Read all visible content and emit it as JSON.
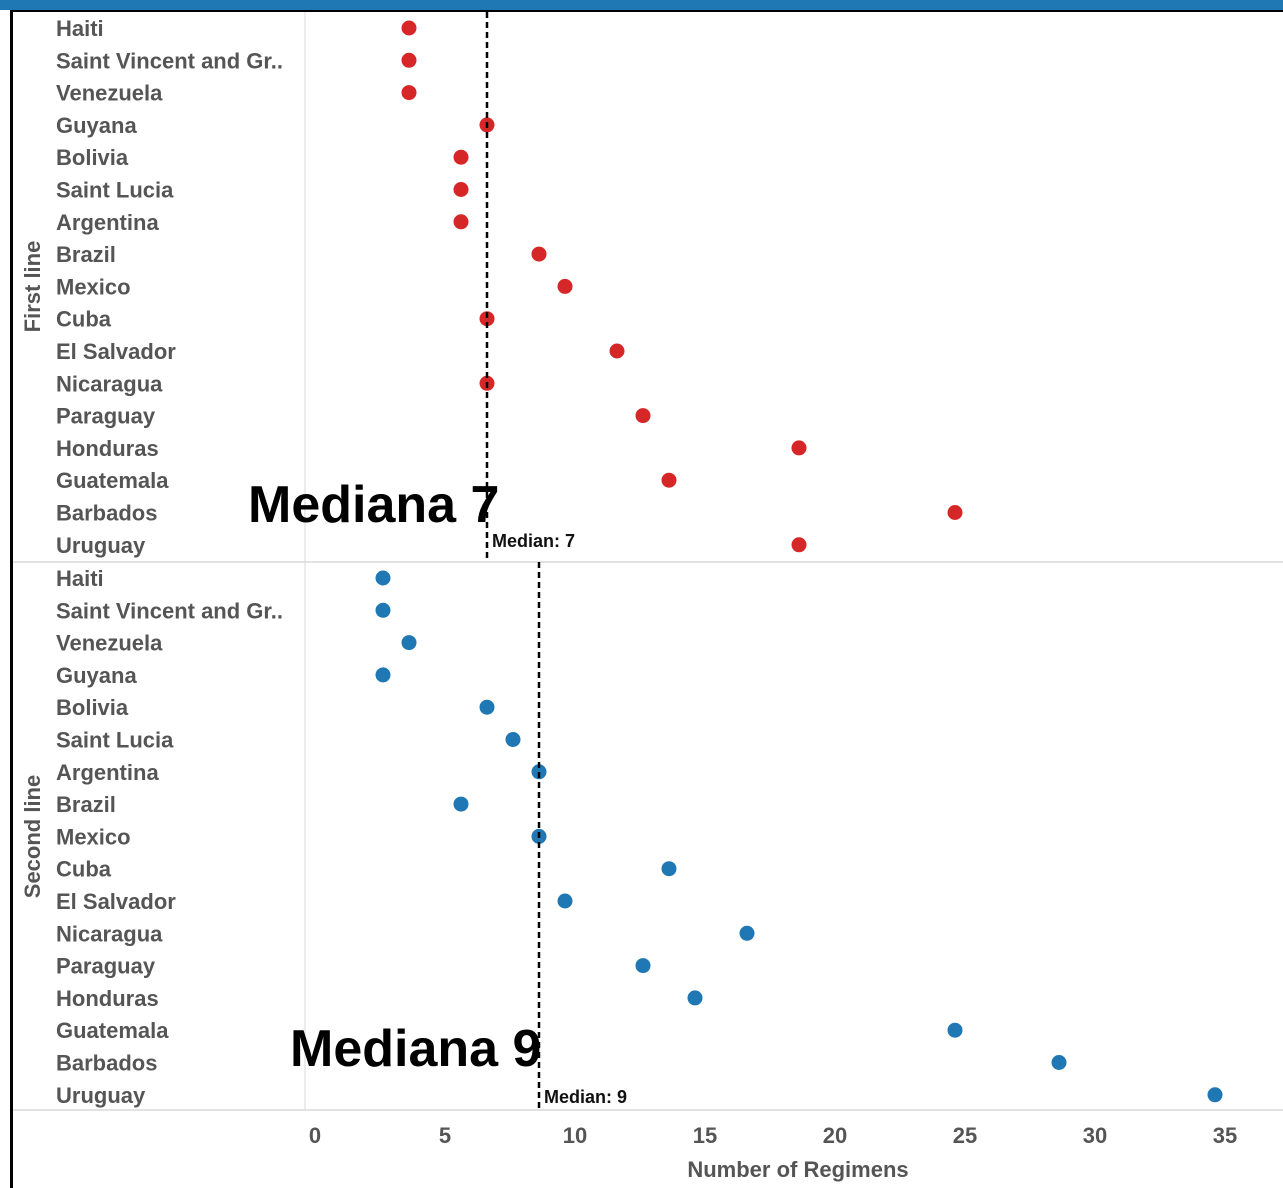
{
  "chart_data": {
    "type": "scatter",
    "categories": [
      "Haiti",
      "Saint Vincent and Gr..",
      "Venezuela",
      "Guyana",
      "Bolivia",
      "Saint Lucia",
      "Argentina",
      "Brazil",
      "Mexico",
      "Cuba",
      "El Salvador",
      "Nicaragua",
      "Paraguay",
      "Honduras",
      "Guatemala",
      "Barbados",
      "Uruguay"
    ],
    "series": [
      {
        "name": "First line",
        "color": "#d62728",
        "values": [
          4,
          4,
          4,
          7,
          6,
          6,
          6,
          9,
          10,
          7,
          12,
          7,
          13,
          19,
          14,
          25,
          19
        ],
        "median": 7,
        "median_label": "Median: 7",
        "annotation": "Mediana 7"
      },
      {
        "name": "Second line",
        "color": "#1f77b4",
        "values": [
          3,
          3,
          4,
          3,
          7,
          8,
          9,
          6,
          9,
          14,
          10,
          17,
          13,
          15,
          25,
          29,
          35
        ],
        "median": 9,
        "median_label": "Median: 9",
        "annotation": "Mediana 9"
      }
    ],
    "xlabel": "Number of Regimens",
    "xticks": [
      0,
      5,
      10,
      15,
      20,
      25,
      30,
      35
    ],
    "xlim": [
      0,
      37
    ],
    "grid": "vertical",
    "legend": "none"
  },
  "colors": {
    "frame_top": "#1f78b4",
    "border": "#000000",
    "gridline": "#d9d9d9",
    "text": "#555555"
  }
}
